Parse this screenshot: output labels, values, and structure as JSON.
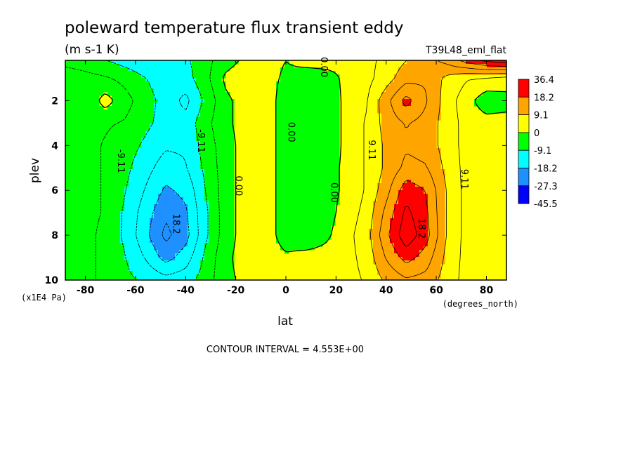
{
  "chart_data": {
    "type": "contour",
    "title": "poleward temperature flux transient eddy",
    "units": "(m s-1 K)",
    "run_label": "T39L48_eml_flat",
    "xlabel": "lat",
    "xunits": "(degrees_north)",
    "ylabel": "plev",
    "yunits": "(x1E4 Pa)",
    "xlim": [
      -88,
      88
    ],
    "ylim": [
      10,
      0.2
    ],
    "x_ticks": [
      -80,
      -60,
      -40,
      -20,
      0,
      20,
      40,
      60,
      80
    ],
    "x_tick_labels": [
      "-80",
      "-60",
      "-40",
      "-20",
      "0",
      "20",
      "40",
      "60",
      "80"
    ],
    "y_ticks": [
      2,
      4,
      6,
      8,
      10
    ],
    "y_tick_labels": [
      "2",
      "4",
      "6",
      "8",
      "10"
    ],
    "contour_interval_text": "CONTOUR INTERVAL = 4.553E+00",
    "colorbar": {
      "labels": [
        "36.4",
        "18.2",
        "9.1",
        "0",
        "-9.1",
        "-18.2",
        "-27.3",
        "-45.5"
      ],
      "colors": [
        "#ff0000",
        "#ffa500",
        "#ffff00",
        "#00ff00",
        "#00ffff",
        "#1e90ff",
        "#0000ff"
      ]
    },
    "contour_labels": [
      {
        "text": "0.00",
        "lat": 15,
        "plev": 0.5
      },
      {
        "text": "0.00",
        "lat": 2,
        "plev": 3.4
      },
      {
        "text": "0.00",
        "lat": -19,
        "plev": 5.8
      },
      {
        "text": "0.00",
        "lat": 19,
        "plev": 6.1
      },
      {
        "text": "-9.11",
        "lat": -66,
        "plev": 4.7
      },
      {
        "text": "-9.11",
        "lat": -34,
        "plev": 3.8
      },
      {
        "text": "18.2",
        "lat": -44,
        "plev": 7.5
      },
      {
        "text": "9.11",
        "lat": 34,
        "plev": 4.2
      },
      {
        "text": "9.11",
        "lat": 71,
        "plev": 5.5
      },
      {
        "text": "18.2",
        "lat": 54,
        "plev": 7.7
      }
    ],
    "field": {
      "note": "approximate field reconstruction from visible contours",
      "lat": [
        -88,
        -80,
        -72,
        -64,
        -56,
        -48,
        -40,
        -32,
        -24,
        -16,
        -8,
        0,
        8,
        16,
        24,
        32,
        40,
        48,
        56,
        64,
        72,
        80,
        88
      ],
      "plev": [
        0.2,
        1,
        2,
        3,
        4,
        5,
        6,
        7,
        8,
        9,
        10
      ],
      "values": [
        [
          -6,
          -7,
          -9,
          -11,
          -13,
          -12,
          -10,
          -6,
          -2,
          1,
          2,
          0,
          2,
          2,
          1,
          3,
          6,
          9,
          12,
          15,
          20,
          24,
          26
        ],
        [
          -2,
          -3,
          -4,
          -6,
          -9,
          -12,
          -11,
          -6,
          1,
          3,
          2,
          -1,
          -3,
          -2,
          1,
          3,
          7,
          12,
          13,
          8,
          5,
          4,
          3
        ],
        [
          -3,
          -4,
          2,
          -3,
          -7,
          -11,
          -15,
          -8,
          -1,
          2,
          3,
          -3,
          -4,
          -3,
          1,
          4,
          12,
          20,
          14,
          7,
          2,
          -3,
          -2
        ],
        [
          -2,
          -3,
          -4,
          -5,
          -8,
          -11,
          -12,
          -6,
          -1,
          2,
          3,
          -3,
          -4,
          -3,
          1,
          5,
          11,
          14,
          12,
          7,
          3,
          2,
          2
        ],
        [
          -2,
          -3,
          -5,
          -7,
          -10,
          -13,
          -13,
          -7,
          -2,
          2,
          3,
          -3,
          -4,
          -3,
          1,
          5,
          10,
          13,
          12,
          7,
          3,
          2,
          2
        ],
        [
          -2,
          -3,
          -5,
          -8,
          -12,
          -16,
          -14,
          -8,
          -2,
          2,
          3,
          -3,
          -4,
          -2,
          1,
          5,
          10,
          15,
          14,
          8,
          3,
          2,
          2
        ],
        [
          -2,
          -3,
          -5,
          -9,
          -14,
          -19,
          -17,
          -9,
          -2,
          2,
          3,
          -3,
          -4,
          -2,
          1,
          5,
          12,
          21,
          18,
          9,
          3,
          2,
          2
        ],
        [
          -2,
          -3,
          -5,
          -10,
          -16,
          -22,
          -19,
          -10,
          -2,
          2,
          3,
          -3,
          -4,
          -2,
          2,
          6,
          15,
          24,
          19,
          9,
          3,
          2,
          2
        ],
        [
          -2,
          -3,
          -6,
          -10,
          -17,
          -24,
          -20,
          -10,
          -2,
          2,
          3,
          -3,
          -4,
          -1,
          3,
          7,
          17,
          26,
          20,
          9,
          3,
          2,
          2
        ],
        [
          -2,
          -3,
          -6,
          -9,
          -14,
          -20,
          -16,
          -8,
          -1,
          2,
          3,
          1,
          2,
          2,
          3,
          6,
          14,
          20,
          16,
          8,
          3,
          2,
          2
        ],
        [
          -2,
          -3,
          -6,
          -8,
          -10,
          -12,
          -11,
          -7,
          -1,
          1,
          2,
          1,
          2,
          2,
          3,
          5,
          10,
          13,
          12,
          7,
          3,
          2,
          2
        ]
      ]
    }
  }
}
